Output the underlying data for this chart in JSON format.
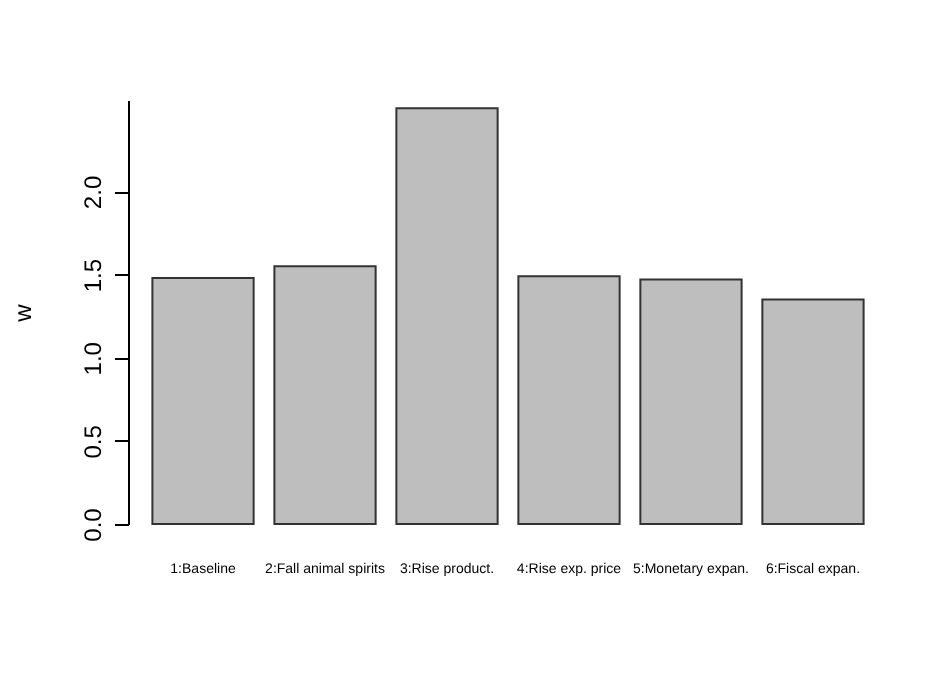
{
  "chart_data": {
    "type": "bar",
    "ylabel": "w",
    "categories": [
      "1:Baseline",
      "2:Fall animal spirits",
      "3:Rise product.",
      "4:Rise exp. price",
      "5:Monetary expan.",
      "6:Fiscal expan."
    ],
    "values": [
      1.48,
      1.55,
      2.5,
      1.49,
      1.47,
      1.35
    ],
    "color": "#bebebe",
    "ylim": [
      0,
      2.55
    ],
    "yticks": [
      {
        "value": 0,
        "label": "0.0"
      },
      0.5,
      {
        "value": 1,
        "label": "1.0"
      },
      1.5,
      {
        "value": 2,
        "label": "2.0"
      }
    ],
    "grid": false
  }
}
